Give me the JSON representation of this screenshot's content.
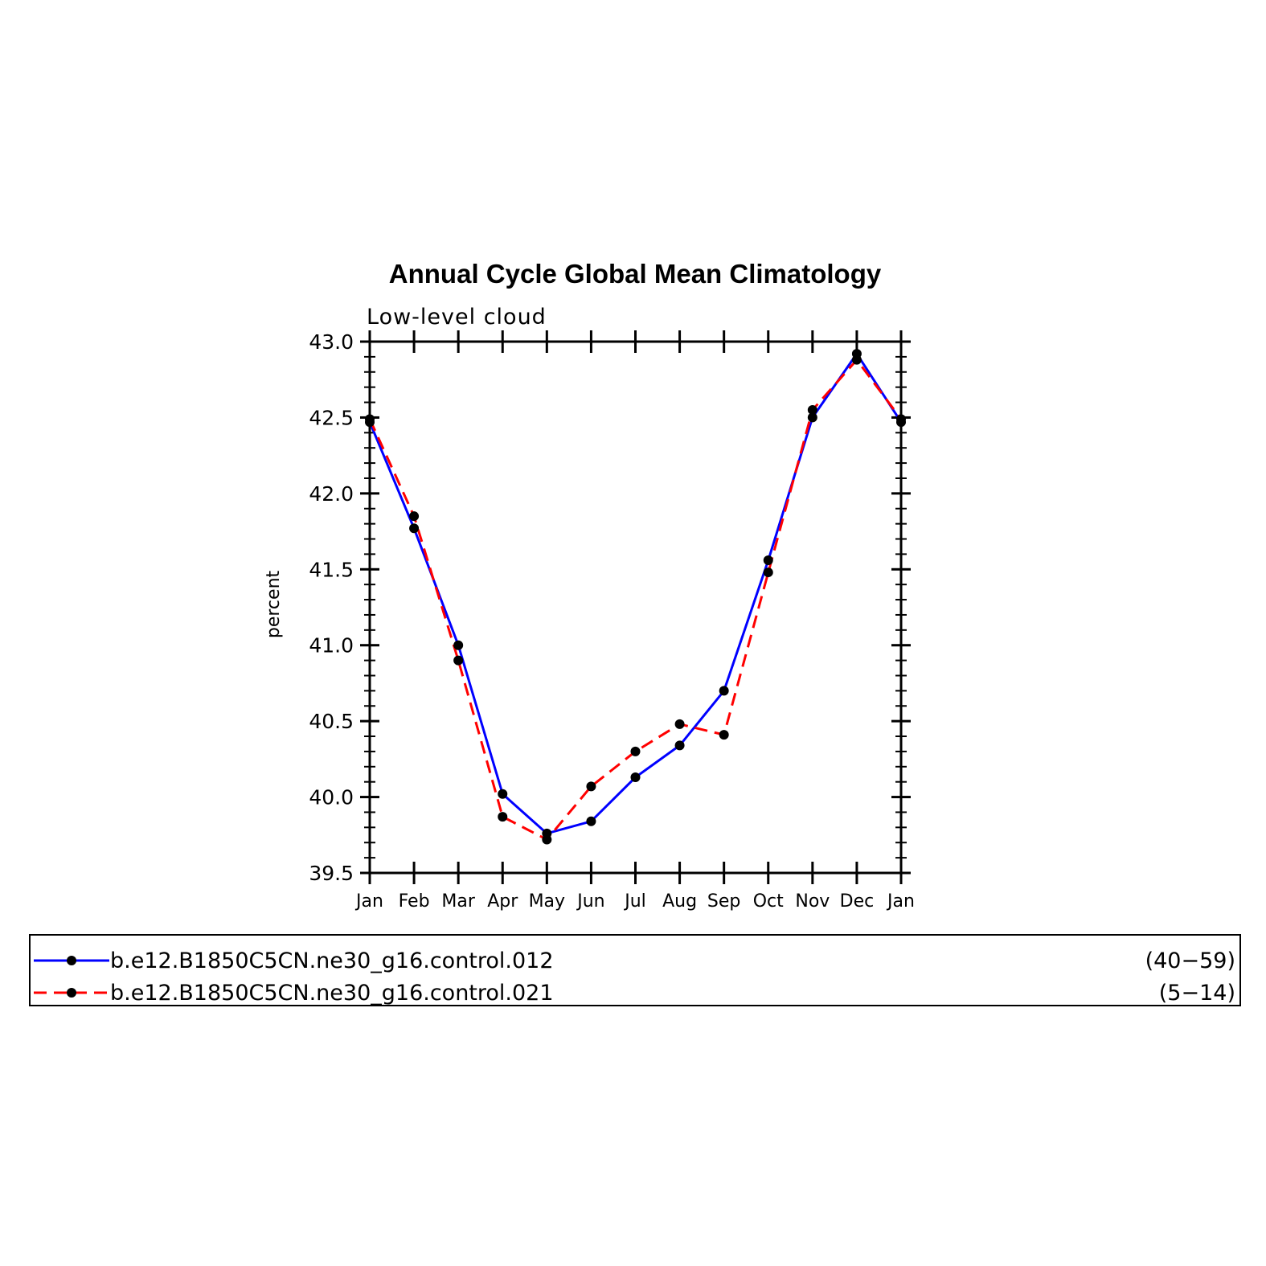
{
  "chart_data": {
    "type": "line",
    "title": "Annual Cycle Global Mean Climatology",
    "subtitle": "Low-level cloud",
    "ylabel": "percent",
    "xlabel": "",
    "categories": [
      "Jan",
      "Feb",
      "Mar",
      "Apr",
      "May",
      "Jun",
      "Jul",
      "Aug",
      "Sep",
      "Oct",
      "Nov",
      "Dec",
      "Jan"
    ],
    "ylim": [
      39.5,
      43.0
    ],
    "yticks": [
      "39.5",
      "40.0",
      "40.5",
      "41.0",
      "41.5",
      "42.0",
      "42.5",
      "43.0"
    ],
    "series": [
      {
        "name": "b.e12.B1850C5CN.ne30_g16.control.012",
        "years": "(40−59)",
        "color": "#0000ff",
        "dash": "solid",
        "values": [
          42.47,
          41.77,
          41.0,
          40.02,
          39.76,
          39.84,
          40.13,
          40.34,
          40.7,
          41.56,
          42.5,
          42.92,
          42.47
        ]
      },
      {
        "name": "b.e12.B1850C5CN.ne30_g16.control.021",
        "years": "(5−14)",
        "color": "#ff0000",
        "dash": "dashed",
        "values": [
          42.49,
          41.85,
          40.9,
          39.87,
          39.72,
          40.07,
          40.3,
          40.48,
          40.41,
          41.48,
          42.55,
          42.88,
          42.49
        ]
      }
    ]
  }
}
